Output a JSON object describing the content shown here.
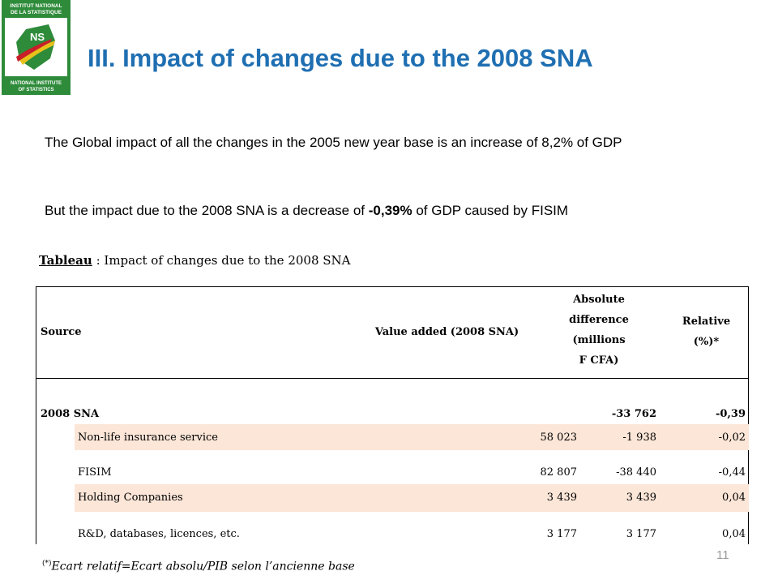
{
  "logo": {
    "top_text_1": "INSTITUT NATIONAL",
    "top_text_2": "DE LA STATISTIQUE",
    "mark": "NS",
    "bottom_text_1": "NATIONAL INSTITUTE",
    "bottom_text_2": "OF STATISTICS"
  },
  "slide": {
    "title": "III. Impact of changes due to the 2008 SNA",
    "paragraph1": "The Global impact of all the changes in the 2005 new year base is an increase of 8,2% of GDP",
    "paragraph2_pre": "But the impact due to the 2008 SNA is a decrease of ",
    "paragraph2_bold": "-0,39%",
    "paragraph2_post": "  of GDP  caused by FISIM",
    "caption_label": "Tableau",
    "caption_text": " : Impact of changes due to the 2008 SNA",
    "footnote_mark": "(*)",
    "footnote_text": "Ecart relatif=Ecart absolu/PIB selon l’ancienne base",
    "page_number": "11"
  },
  "table": {
    "headers": {
      "source": "Source",
      "value_added": "Value added (2008 SNA)",
      "absolute_1": "Absolute",
      "absolute_2": "difference",
      "absolute_3": "(millions",
      "absolute_4": "F CFA)",
      "relative_1": "Relative",
      "relative_2": "(%)*"
    },
    "total": {
      "label": "2008 SNA",
      "absolute": "-33 762",
      "relative": "-0,39"
    },
    "rows": [
      {
        "label": "Non-life insurance service",
        "value": "58 023",
        "absolute": "-1 938",
        "relative": "-0,02"
      },
      {
        "label": "FISIM",
        "value": "82 807",
        "absolute": "-38 440",
        "relative": "-0,44"
      },
      {
        "label": "Holding Companies",
        "value": "3 439",
        "absolute": "3 439",
        "relative": "0,04"
      },
      {
        "label": "R&D, databases, licences, etc.",
        "value": "3 177",
        "absolute": "3 177",
        "relative": "0,04"
      }
    ]
  },
  "colors": {
    "title": "#1f6fb2",
    "row_shade": "#fbe6d8",
    "logo_green": "#2e8b3a"
  }
}
